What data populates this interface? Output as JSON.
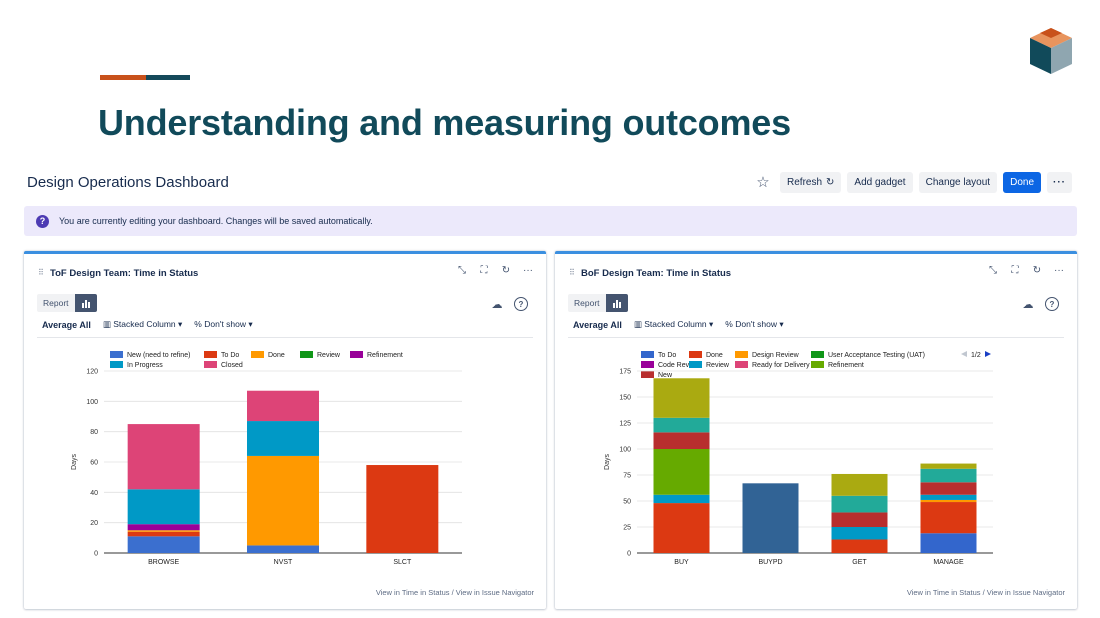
{
  "slide": {
    "title": "Understanding and measuring outcomes"
  },
  "dashboard": {
    "title": "Design Operations Dashboard",
    "toolbar": {
      "refresh_label": "Refresh",
      "add_gadget_label": "Add gadget",
      "change_layout_label": "Change layout",
      "done_label": "Done",
      "more_label": "···"
    },
    "banner_text": "You are currently editing your dashboard. Changes will be saved automatically."
  },
  "gadgets": [
    {
      "title": "ToF Design Team: Time in Status",
      "report_tab": "Report",
      "average_label": "Average All",
      "chart_type_label": "Stacked Column",
      "show_label": "Don't show",
      "footer_link_1": "View in Time in Status",
      "footer_sep": " / ",
      "footer_link_2": "View in Issue Navigator"
    },
    {
      "title": "BoF Design Team: Time in Status",
      "report_tab": "Report",
      "average_label": "Average All",
      "chart_type_label": "Stacked Column",
      "show_label": "Don't show",
      "footer_link_1": "View in Time in Status",
      "footer_sep": " / ",
      "footer_link_2": "View in Issue Navigator",
      "legend_pager": "1/2"
    }
  ],
  "colors": {
    "accent_orange": "#c8511b",
    "accent_teal": "#14495a",
    "title": "#114a5a",
    "primary_button": "#0c66e4"
  },
  "chart_data": [
    {
      "type": "bar",
      "stacked": true,
      "ylabel": "Days",
      "ylim": [
        0,
        120
      ],
      "yticks": [
        0,
        20,
        40,
        60,
        80,
        100,
        120
      ],
      "categories": [
        "BROWSE",
        "NVST",
        "SLCT"
      ],
      "legend_position": "top",
      "series": [
        {
          "name": "New (need to refine)",
          "color": "#3b6fcf",
          "values": [
            11,
            5,
            0
          ]
        },
        {
          "name": "To Do",
          "color": "#dc3912",
          "values": [
            3,
            0,
            58
          ]
        },
        {
          "name": "Done",
          "color": "#ff9900",
          "values": [
            1,
            59,
            0
          ]
        },
        {
          "name": "Review",
          "color": "#109618",
          "values": [
            0,
            0,
            0
          ]
        },
        {
          "name": "Refinement",
          "color": "#990099",
          "values": [
            4,
            0,
            0
          ]
        },
        {
          "name": "In Progress",
          "color": "#0099c6",
          "values": [
            23,
            23,
            0
          ]
        },
        {
          "name": "Closed",
          "color": "#dd4477",
          "values": [
            43,
            20,
            0
          ]
        }
      ]
    },
    {
      "type": "bar",
      "stacked": true,
      "ylabel": "Days",
      "ylim": [
        0,
        175
      ],
      "yticks": [
        0,
        25,
        50,
        75,
        100,
        125,
        150,
        175
      ],
      "categories": [
        "BUY",
        "BUYPD",
        "GET",
        "MANAGE"
      ],
      "legend_position": "top",
      "series": [
        {
          "name": "To Do",
          "color": "#3366cc",
          "values": [
            0,
            0,
            0,
            19
          ]
        },
        {
          "name": "Done",
          "color": "#dc3912",
          "values": [
            48,
            0,
            13,
            30
          ]
        },
        {
          "name": "Design Review",
          "color": "#ff9900",
          "values": [
            0,
            0,
            0,
            2
          ]
        },
        {
          "name": "User Acceptance Testing (UAT)",
          "color": "#109618",
          "values": [
            0,
            0,
            0,
            0
          ]
        },
        {
          "name": "Code Review",
          "color": "#990099",
          "values": [
            0,
            0,
            0,
            0
          ]
        },
        {
          "name": "Review",
          "color": "#0099c6",
          "values": [
            8,
            0,
            12,
            5
          ]
        },
        {
          "name": "Ready for Delivery",
          "color": "#dd4477",
          "values": [
            0,
            0,
            0,
            0
          ]
        },
        {
          "name": "Refinement",
          "color": "#66aa00",
          "values": [
            44,
            0,
            0,
            0
          ]
        },
        {
          "name": "New",
          "color": "#b82e2e",
          "values": [
            16,
            0,
            14,
            12
          ]
        },
        {
          "name": "",
          "color": "#316395",
          "values": [
            0,
            67,
            0,
            0
          ]
        },
        {
          "name": "",
          "color": "#22aa99",
          "values": [
            14,
            0,
            16,
            13
          ]
        },
        {
          "name": "",
          "color": "#aaaa11",
          "values": [
            38,
            0,
            21,
            5
          ]
        }
      ]
    }
  ]
}
